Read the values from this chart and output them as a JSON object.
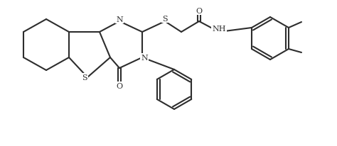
{
  "background_color": "#ffffff",
  "line_color": "#2d2d2d",
  "figsize": [
    4.74,
    2.07
  ],
  "dpi": 100,
  "lw": 1.5,
  "atom_labels": {
    "N1": "N",
    "N2": "N",
    "S1": "S",
    "S2": "S",
    "O1": "O",
    "O2": "O",
    "NH": "NH"
  }
}
